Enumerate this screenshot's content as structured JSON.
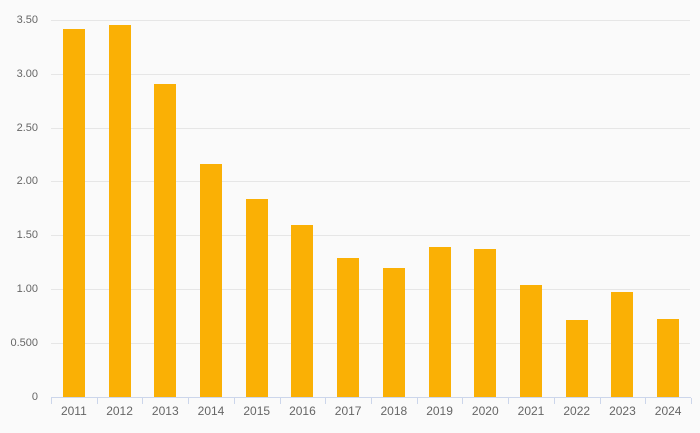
{
  "chart_data": {
    "type": "bar",
    "title": "",
    "xlabel": "",
    "ylabel": "",
    "categories": [
      "2011",
      "2012",
      "2013",
      "2014",
      "2015",
      "2016",
      "2017",
      "2018",
      "2019",
      "2020",
      "2021",
      "2022",
      "2023",
      "2024"
    ],
    "values": [
      3.41,
      3.45,
      2.9,
      2.16,
      1.84,
      1.6,
      1.29,
      1.2,
      1.39,
      1.37,
      1.04,
      0.71,
      0.97,
      0.72
    ],
    "ylim": [
      0,
      3.5
    ],
    "ytick_values": [
      0,
      0.5,
      1.0,
      1.5,
      2.0,
      2.5,
      3.0,
      3.5
    ],
    "ytick_labels": [
      "0",
      "0.500",
      "1.00",
      "1.50",
      "2.00",
      "2.50",
      "3.00",
      "3.50"
    ],
    "grid": true,
    "legend": false,
    "colors": {
      "bar": "#FAB005",
      "background": "#FAFAFA",
      "gridline": "#E6E6E6",
      "axis_line": "#CCD6EB",
      "label_text": "#666666"
    }
  }
}
